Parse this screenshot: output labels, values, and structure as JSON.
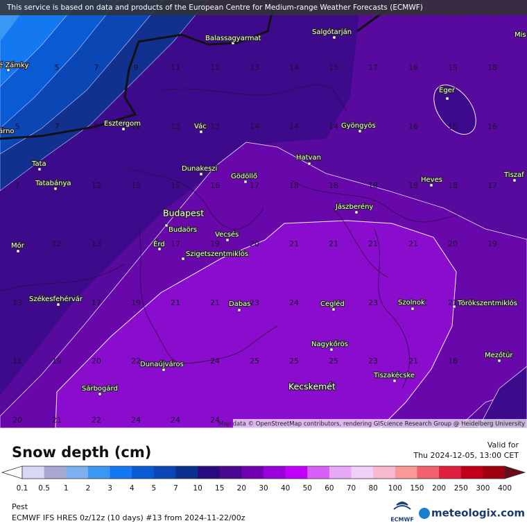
{
  "header": {
    "notice": "This service is based on data and products of the European Centre for Medium-range Weather Forecasts (ECMWF)"
  },
  "map": {
    "attribution": "Map data © OpenStreetMap contributors, rendering GIScience Research Group @ Heidelberg University",
    "cities": [
      "é Zámky",
      "árno",
      "Balassagyarmat",
      "Salgótarján",
      "Mis",
      "Eger",
      "Esztergom",
      "Vác",
      "Gyöngyös",
      "Tata",
      "Tatabánya",
      "Dunakeszi",
      "Gödöllő",
      "Hatvan",
      "Heves",
      "Tiszaf",
      "Jászberény",
      "Budapest",
      "Budaörs",
      "Vecsés",
      "Érd",
      "Mór",
      "Szigetszentmiklós",
      "Székesfehérvár",
      "Dabas",
      "Cegléd",
      "Szolnok",
      "Törökszentmiklós",
      "Nagykőrös",
      "Dunaújváros",
      "Mezőtúr",
      "Sárbogárd",
      "Kecskemét",
      "Tiszakécske"
    ],
    "values": [
      16,
      18,
      18,
      5,
      7,
      9,
      11,
      12,
      13,
      14,
      15,
      17,
      16,
      15,
      18,
      5,
      7,
      9,
      11,
      13,
      13,
      14,
      14,
      14,
      16,
      15,
      16,
      7,
      9,
      12,
      13,
      15,
      16,
      17,
      18,
      18,
      18,
      18,
      18,
      17,
      12,
      13,
      17,
      19,
      20,
      21,
      21,
      21,
      21,
      20,
      19,
      13,
      17,
      19,
      21,
      21,
      23,
      24,
      23,
      21,
      11,
      19,
      20,
      22,
      24,
      25,
      25,
      25,
      23,
      21,
      18,
      20,
      21,
      22,
      24,
      24,
      24
    ]
  },
  "legend": {
    "title": "Snow depth (cm)",
    "valid_label": "Valid for",
    "valid_time": "Thu 2024-12-05, 13:00 CET",
    "ticks": [
      0.1,
      0.5,
      1,
      2,
      3,
      4,
      5,
      7,
      10,
      15,
      20,
      30,
      40,
      50,
      60,
      70,
      80,
      100,
      150,
      200,
      250,
      300,
      400
    ]
  },
  "footer": {
    "location": "Pest",
    "model": "ECMWF IFS HRES 0z/12z (10 days) #13 from  2024-11-22/00z",
    "logo": "ECMWF",
    "brand": "meteologix.com"
  }
}
